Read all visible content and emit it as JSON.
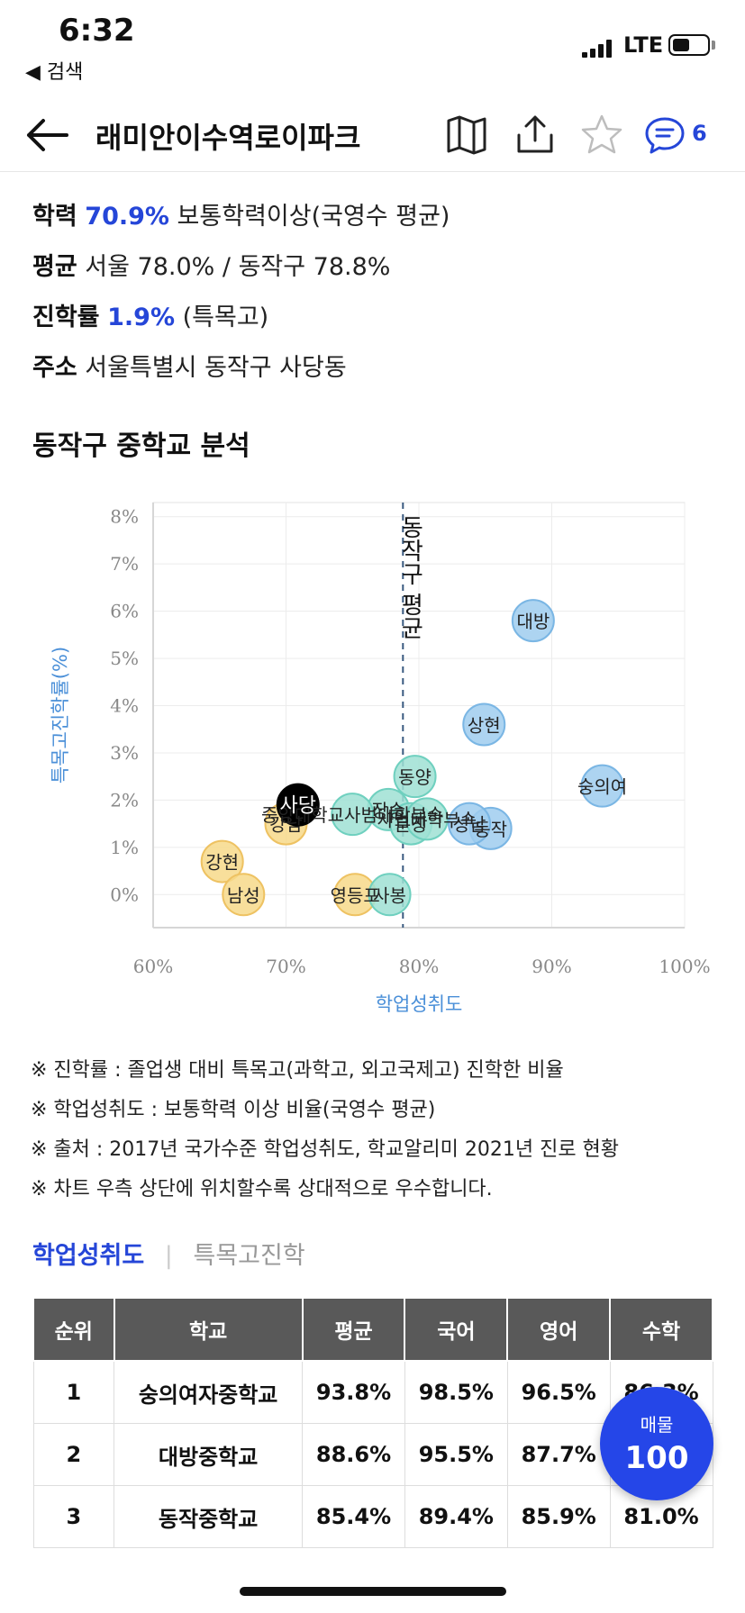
{
  "status_bar": {
    "time": "6:32",
    "back_app": "◀ 검색",
    "network": "LTE"
  },
  "header": {
    "title": "래미안이수역로이파크",
    "comment_count": "6"
  },
  "school_info": {
    "academic": {
      "label": "학력",
      "value": "70.9%",
      "suffix": "보통학력이상(국영수 평균)"
    },
    "average": {
      "label": "평균",
      "value": "서울 78.0% / 동작구 78.8%"
    },
    "advancement": {
      "label": "진학률",
      "value": "1.9%",
      "suffix": "(특목고)"
    },
    "address": {
      "label": "주소",
      "value": "서울특별시 동작구 사당동"
    }
  },
  "section_title": "동작구 중학교 분석",
  "chart_data": {
    "type": "scatter",
    "xlabel": "학업성취도",
    "ylabel": "특목고진학률(%)",
    "xlim": [
      60,
      100
    ],
    "ylim": [
      -0.7,
      8.3
    ],
    "x_ticks": [
      "60%",
      "70%",
      "80%",
      "90%",
      "100%"
    ],
    "y_ticks": [
      "0%",
      "1%",
      "2%",
      "3%",
      "4%",
      "5%",
      "6%",
      "7%",
      "8%"
    ],
    "average_line": {
      "x": 78.8,
      "label": "동작구 평균"
    },
    "grid": true,
    "legend": "none",
    "points": [
      {
        "name": "대방",
        "x": 88.6,
        "y": 5.8,
        "group": "blue"
      },
      {
        "name": "상현",
        "x": 84.9,
        "y": 3.6,
        "group": "blue"
      },
      {
        "name": "숭의여",
        "x": 93.8,
        "y": 2.3,
        "group": "blue"
      },
      {
        "name": "동작",
        "x": 85.4,
        "y": 1.4,
        "group": "blue"
      },
      {
        "name": "성남",
        "x": 83.8,
        "y": 1.5,
        "group": "blue"
      },
      {
        "name": "동양",
        "x": 79.7,
        "y": 2.5,
        "group": "teal"
      },
      {
        "name": "장승",
        "x": 77.7,
        "y": 1.8,
        "group": "teal"
      },
      {
        "name": "문창",
        "x": 79.4,
        "y": 1.5,
        "group": "teal"
      },
      {
        "name": "사범대학부속",
        "x": 80.6,
        "y": 1.6,
        "group": "teal"
      },
      {
        "name": "중앙대학교사범대학부속",
        "x": 75.0,
        "y": 1.7,
        "group": "teal"
      },
      {
        "name": "사봉",
        "x": 77.8,
        "y": 0.0,
        "group": "teal"
      },
      {
        "name": "사당",
        "x": 70.9,
        "y": 1.9,
        "group": "black"
      },
      {
        "name": "강남",
        "x": 70.0,
        "y": 1.5,
        "group": "yellow"
      },
      {
        "name": "강현",
        "x": 65.2,
        "y": 0.7,
        "group": "yellow"
      },
      {
        "name": "남성",
        "x": 66.8,
        "y": 0.0,
        "group": "yellow"
      },
      {
        "name": "영등포",
        "x": 75.2,
        "y": 0.0,
        "group": "yellow"
      }
    ],
    "colors": {
      "blue": "#9fcdee",
      "teal": "#9fe0d4",
      "yellow": "#f7d98a",
      "black": "#000000",
      "axis_label": "#4a8fd8"
    }
  },
  "notes": [
    "※ 진학률 : 졸업생 대비 특목고(과학고, 외고국제고) 진학한 비율",
    "※ 학업성취도 : 보통학력 이상 비율(국영수 평균)",
    "※ 출처 : 2017년 국가수준 학업성취도, 학교알리미 2021년 진로 현황",
    "※ 차트 우측 상단에 위치할수록 상대적으로 우수합니다."
  ],
  "tabs": {
    "active": "학업성취도",
    "separator": "|",
    "inactive": "특목고진학"
  },
  "table": {
    "headers": [
      "순위",
      "학교",
      "평균",
      "국어",
      "영어",
      "수학"
    ],
    "rows": [
      [
        "1",
        "숭의여자중학교",
        "93.8%",
        "98.5%",
        "96.5%",
        "86.3%"
      ],
      [
        "2",
        "대방중학교",
        "88.6%",
        "95.5%",
        "87.7%",
        ""
      ],
      [
        "3",
        "동작중학교",
        "85.4%",
        "89.4%",
        "85.9%",
        "81.0%"
      ]
    ]
  },
  "fab": {
    "label": "매물",
    "count": "100"
  }
}
